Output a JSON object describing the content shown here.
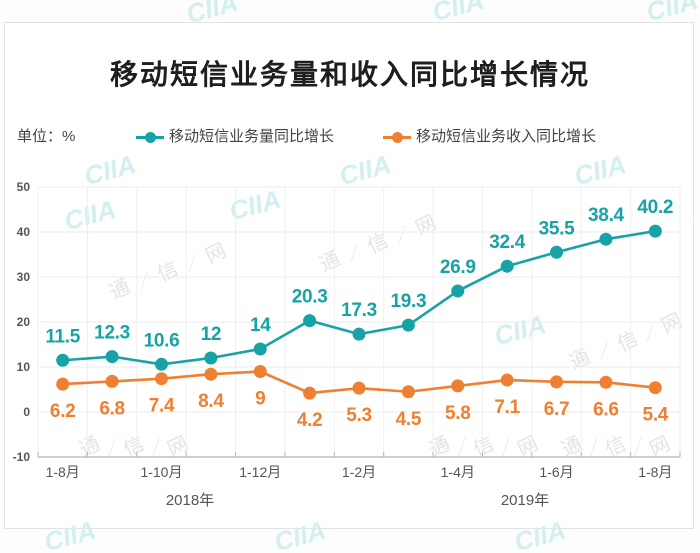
{
  "watermark": {
    "logo": "CIIA",
    "chars": [
      "通",
      "信",
      "网"
    ]
  },
  "chart_data": {
    "type": "line",
    "title": "移动短信业务量和收入同比增长情况",
    "unit_label": "单位：%",
    "xlabel": "",
    "ylabel": "%",
    "categories": [
      "1-8月",
      "",
      "1-10月",
      "",
      "1-12月",
      "",
      "1-2月",
      "",
      "1-4月",
      "",
      "1-6月",
      "",
      "1-8月"
    ],
    "year_labels": [
      "2018年",
      "2019年"
    ],
    "ylim": [
      -10,
      50
    ],
    "yticks": [
      -10,
      0,
      10,
      20,
      30,
      40,
      50
    ],
    "grid": true,
    "legend_position": "top",
    "series": [
      {
        "name": "移动短信业务量同比增长",
        "color": "#17a3a5",
        "label_position": "above",
        "values": [
          11.5,
          12.3,
          10.6,
          12,
          14,
          20.3,
          17.3,
          19.3,
          26.9,
          32.4,
          35.5,
          38.4,
          40.2
        ]
      },
      {
        "name": "移动短信业务收入同比增长",
        "color": "#ef7f31",
        "label_position": "below",
        "values": [
          6.2,
          6.8,
          7.4,
          8.4,
          9,
          4.2,
          5.3,
          4.5,
          5.8,
          7.1,
          6.7,
          6.6,
          5.4
        ]
      }
    ]
  }
}
